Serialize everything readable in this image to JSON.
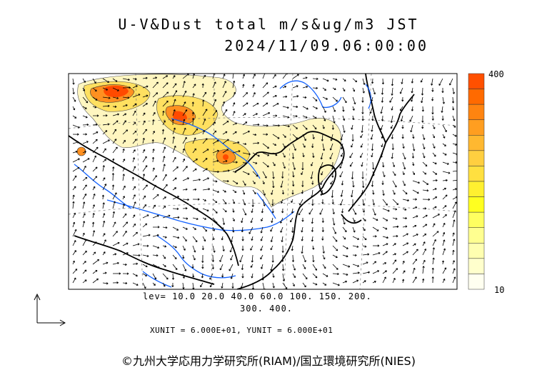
{
  "title": "U-V&Dust total m/s&ug/m3 JST",
  "timestamp": "2024/11/09.06:00:00",
  "colorbar": {
    "max_label": "400",
    "min_label": "10",
    "colors": [
      "#ff5000",
      "#ff6a00",
      "#ff8410",
      "#ff9e20",
      "#ffb830",
      "#ffcf40",
      "#ffe040",
      "#fff030",
      "#ffff20",
      "#ffff60",
      "#ffff90",
      "#ffffb0",
      "#ffffcc",
      "#fffff0"
    ]
  },
  "levels_line1": "lev= 10.0 20.0 40.0 60.0 100. 150. 200.",
  "levels_line2": "300. 400.",
  "units": "XUNIT = 6.000E+01, YUNIT = 6.000E+01",
  "credit": "©九州大学応用力学研究所(RIAM)/国立環境研究所(NIES)",
  "colors": {
    "coast": "#000000",
    "river": "#1060ff",
    "dust_light": "#fff6c0",
    "dust_mid": "#ffe060",
    "dust_high": "#ff9020",
    "dust_peak": "#ff4a00"
  }
}
